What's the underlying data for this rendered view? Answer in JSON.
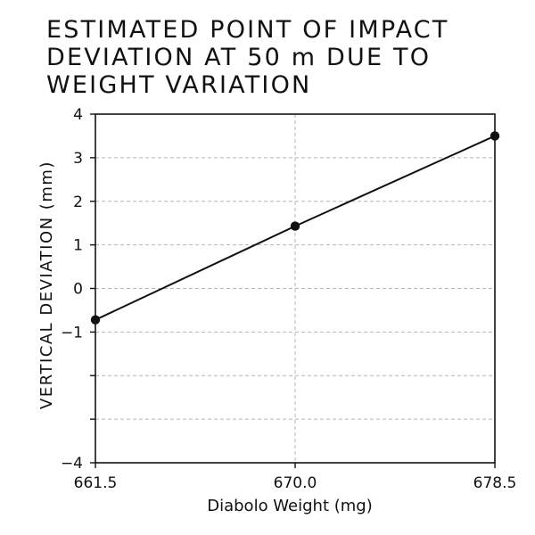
{
  "chart_data": {
    "type": "line",
    "title_lines": [
      "ESTIMATED POINT OF IMPACT",
      "DEVIATION AT 50 m DUE TO",
      "WEIGHT VARIATION"
    ],
    "xlabel": "Diabolo Weight (mg)",
    "ylabel": "VERTICAL DEVIATION (mm)",
    "xlim": [
      661.5,
      678.5
    ],
    "ylim": [
      -4,
      4
    ],
    "x_ticks": [
      661.5,
      670.0,
      678.5
    ],
    "x_tick_labels": [
      "661.5",
      "670.0",
      "678.5"
    ],
    "y_ticks": [
      -4,
      -3,
      -2,
      -1,
      0,
      1,
      2,
      3,
      4
    ],
    "y_tick_labels": [
      "−4",
      "",
      "",
      "−1",
      "0",
      "1",
      "2",
      "3",
      "4"
    ],
    "grid": true,
    "grid_style": "dashed",
    "line_color": "#111111",
    "series": [
      {
        "x": [
          661.5,
          670.0,
          678.5
        ],
        "y": [
          -0.72,
          1.43,
          3.5
        ]
      }
    ]
  }
}
